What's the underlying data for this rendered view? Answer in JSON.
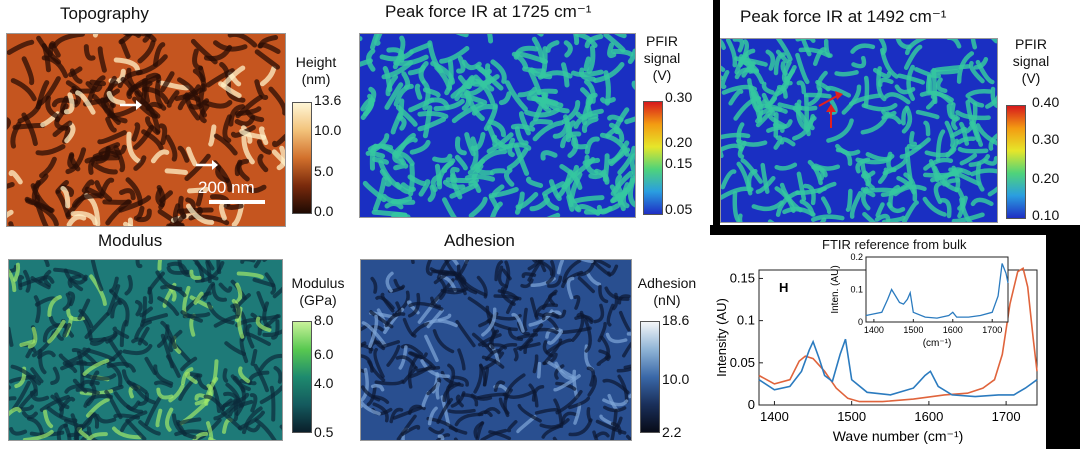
{
  "panels": {
    "topography": {
      "title": "Topography",
      "cb_title_1": "Height",
      "cb_title_2": "(nm)",
      "ticks": [
        "13.6",
        "10.0",
        "5.0",
        "0.0"
      ],
      "scale_label": "200 nm"
    },
    "pfir1725": {
      "title": "Peak force IR at 1725 cm⁻¹",
      "cb_title_1": "PFIR",
      "cb_title_2": "signal",
      "cb_title_3": "(V)",
      "ticks": [
        "0.30",
        "0.20",
        "0.15",
        "0.05"
      ]
    },
    "pfir1492": {
      "title": "Peak force IR at 1492 cm⁻¹",
      "cb_title_1": "PFIR",
      "cb_title_2": "signal",
      "cb_title_3": "(V)",
      "ticks": [
        "0.40",
        "0.30",
        "0.20",
        "0.10"
      ]
    },
    "modulus": {
      "title": "Modulus",
      "cb_title_1": "Modulus",
      "cb_title_2": "(GPa)",
      "ticks": [
        "8.0",
        "6.0",
        "4.0",
        "0.5"
      ]
    },
    "adhesion": {
      "title": "Adhesion",
      "cb_title_1": "Adhesion",
      "cb_title_2": "(nN)",
      "ticks": [
        "18.6",
        "10.0",
        "2.2"
      ]
    }
  },
  "colors": {
    "topo_low": "#2a0e05",
    "topo_mid": "#c5551f",
    "topo_high": "#fff2c8",
    "jet_low": "#1a2fc2",
    "jet_mid": "#35c8a0",
    "jet_high": "#e0201a",
    "mod_low": "#0b2b3a",
    "mod_mid": "#1e7a78",
    "mod_high": "#9ee86a",
    "adh_low": "#0c1730",
    "adh_mid": "#294f90",
    "adh_high": "#f2f4f6",
    "ftir_blue": "#2b7bbf",
    "ftir_orange": "#e0643c"
  },
  "chart_data": {
    "type": "line",
    "title": "FTIR reference from bulk",
    "panel_letter": "H",
    "xlabel": "Wave number (cm⁻¹)",
    "ylabel": "Intensity (AU)",
    "xlim": [
      1380,
      1740
    ],
    "ylim": [
      0,
      0.16
    ],
    "xticks": [
      1400,
      1500,
      1600,
      1700
    ],
    "yticks": [
      0,
      0.05,
      0.1,
      0.15
    ],
    "ytick_labels": [
      "0",
      "0.05",
      "0.1",
      "0.15"
    ],
    "series": [
      {
        "color": "blue",
        "x": [
          1380,
          1400,
          1420,
          1435,
          1445,
          1450,
          1458,
          1465,
          1475,
          1485,
          1492,
          1500,
          1520,
          1550,
          1580,
          1595,
          1602,
          1612,
          1630,
          1660,
          1690,
          1710,
          1725,
          1740
        ],
        "y": [
          0.03,
          0.018,
          0.022,
          0.04,
          0.065,
          0.075,
          0.055,
          0.035,
          0.028,
          0.06,
          0.078,
          0.03,
          0.015,
          0.012,
          0.02,
          0.035,
          0.04,
          0.022,
          0.012,
          0.01,
          0.012,
          0.012,
          0.02,
          0.03
        ]
      },
      {
        "color": "orange",
        "x": [
          1380,
          1400,
          1420,
          1432,
          1440,
          1450,
          1465,
          1480,
          1495,
          1510,
          1540,
          1580,
          1620,
          1650,
          1670,
          1685,
          1695,
          1705,
          1715,
          1722,
          1728,
          1735,
          1740
        ],
        "y": [
          0.035,
          0.025,
          0.03,
          0.052,
          0.058,
          0.055,
          0.04,
          0.02,
          0.008,
          0.004,
          0.004,
          0.007,
          0.012,
          0.014,
          0.02,
          0.03,
          0.06,
          0.12,
          0.158,
          0.162,
          0.14,
          0.08,
          0.04
        ]
      }
    ],
    "inset": {
      "ylabel": "Inten. (AU)",
      "xlabel": "(cm⁻¹)",
      "xlim": [
        1380,
        1740
      ],
      "ylim": [
        0,
        0.2
      ],
      "xticks": [
        1400,
        1500,
        1600,
        1700
      ],
      "yticks": [
        0,
        0.1,
        0.2
      ],
      "ytick_labels": [
        "0",
        "0.1",
        "0.2"
      ],
      "x": [
        1380,
        1400,
        1420,
        1435,
        1445,
        1455,
        1465,
        1475,
        1485,
        1492,
        1500,
        1530,
        1560,
        1590,
        1600,
        1610,
        1640,
        1670,
        1700,
        1715,
        1725,
        1735,
        1740
      ],
      "y": [
        0.02,
        0.025,
        0.03,
        0.07,
        0.1,
        0.08,
        0.06,
        0.055,
        0.07,
        0.09,
        0.03,
        0.015,
        0.012,
        0.02,
        0.03,
        0.015,
        0.015,
        0.02,
        0.03,
        0.08,
        0.18,
        0.15,
        0.12
      ]
    }
  }
}
